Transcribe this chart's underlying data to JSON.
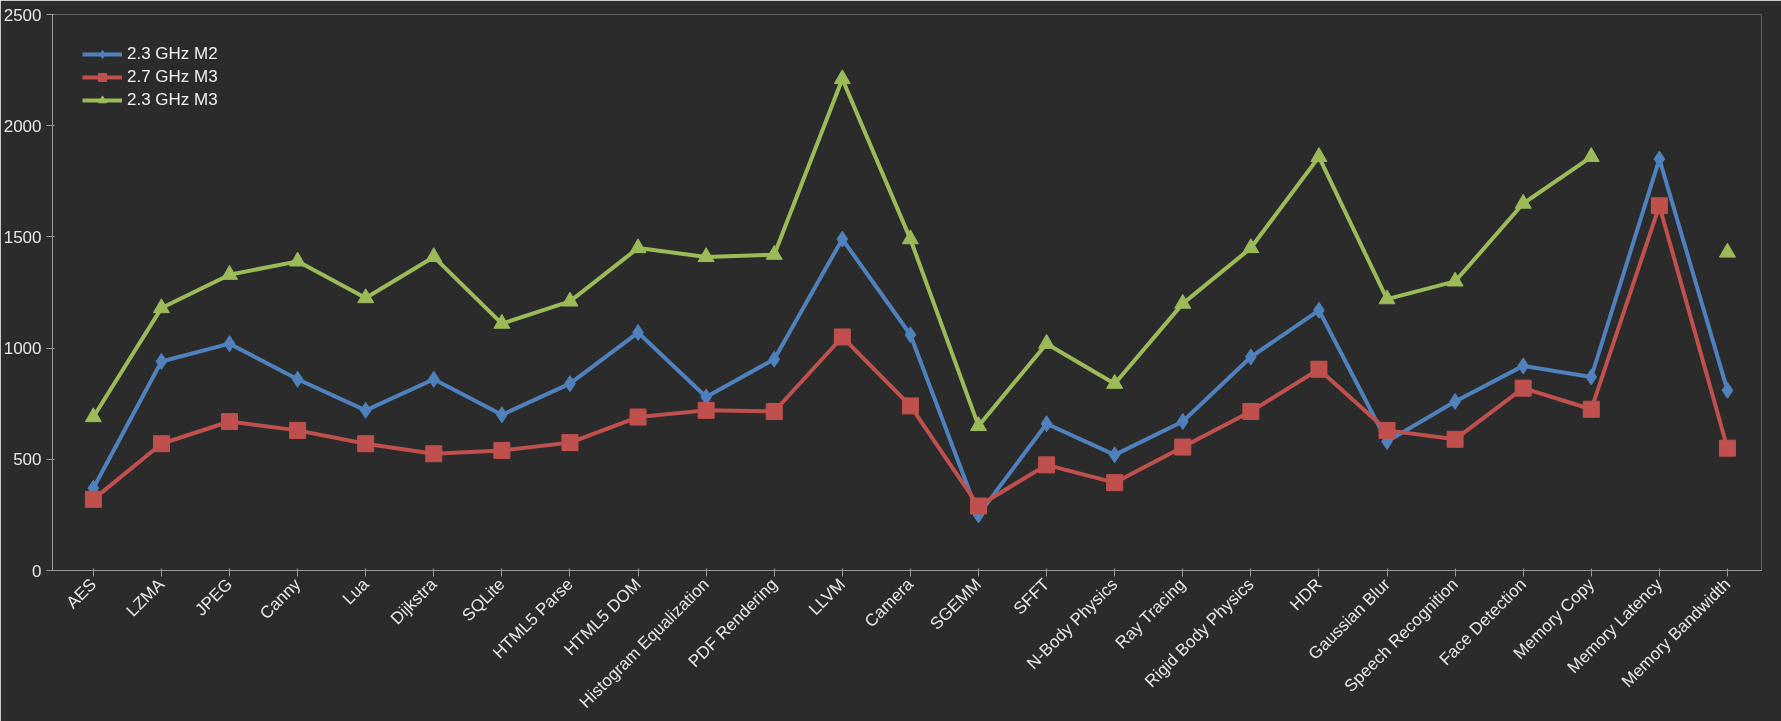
{
  "chart_data": {
    "type": "line",
    "categories": [
      "AES",
      "LZMA",
      "JPEG",
      "Canny",
      "Lua",
      "Dijkstra",
      "SQLite",
      "HTML5 Parse",
      "HTML5 DOM",
      "Histogram Equalization",
      "PDF Rendering",
      "LLVM",
      "Camera",
      "SGEMM",
      "SFFT",
      "N-Body Physics",
      "Ray Tracing",
      "Rigid Body Physics",
      "HDR",
      "Gaussian Blur",
      "Speech Recognition",
      "Face Detection",
      "Memory Copy",
      "Memory Latency",
      "Memory Bandwidth"
    ],
    "series": [
      {
        "name": "2.3 GHz M2",
        "color": "#4f81bd",
        "marker": "diamond",
        "values": [
          370,
          940,
          1020,
          860,
          720,
          860,
          700,
          840,
          1070,
          780,
          950,
          1490,
          1060,
          250,
          660,
          520,
          670,
          960,
          1170,
          580,
          760,
          920,
          870,
          1850,
          810
        ]
      },
      {
        "name": "2.7 GHz M3",
        "color": "#c0504d",
        "marker": "square",
        "values": [
          320,
          570,
          670,
          630,
          570,
          525,
          540,
          575,
          690,
          720,
          715,
          1050,
          740,
          290,
          475,
          395,
          555,
          715,
          905,
          630,
          590,
          820,
          725,
          1640,
          550
        ]
      },
      {
        "name": "2.3 GHz M3",
        "color": "#9bbb59",
        "marker": "triangle",
        "values": [
          690,
          1180,
          1330,
          1390,
          1225,
          1410,
          1110,
          1210,
          1450,
          1410,
          1420,
          2210,
          1490,
          650,
          1020,
          840,
          1200,
          1450,
          1860,
          1220,
          1300,
          1650,
          1860,
          null,
          1430
        ]
      }
    ],
    "ylim": [
      0,
      2500
    ],
    "yticks": [
      0,
      500,
      1000,
      1500,
      2000,
      2500
    ],
    "grid": false,
    "legend": "top left",
    "line_style": "solid"
  }
}
